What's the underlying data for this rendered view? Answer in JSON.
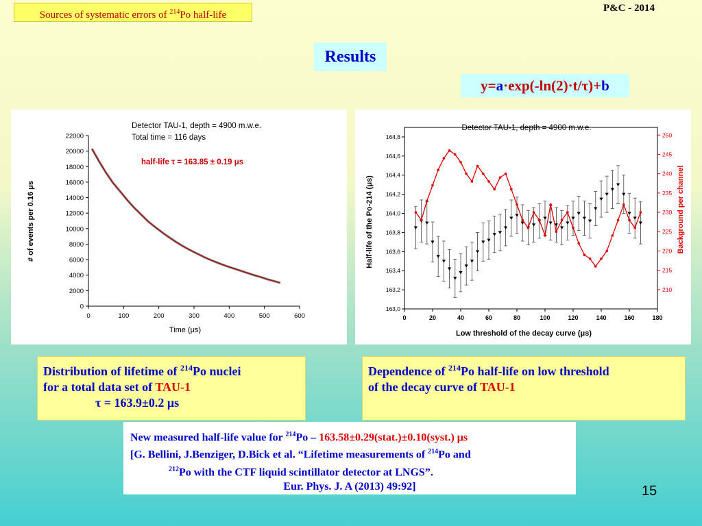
{
  "header": {
    "topic_prefix": "Sources of systematic errors of ",
    "topic_sup": "214",
    "topic_suffix": "Po half-life",
    "conference": "P&C - 2014"
  },
  "results_title": "Results",
  "formula": {
    "y_eq": "y=",
    "a": "a",
    "mid": "·exp(-ln(2)·t/",
    "tau": "τ",
    "plus": ")+",
    "b": "b"
  },
  "chart_data": [
    {
      "type": "line",
      "title": "Detector TAU-1, depth = 4900 m.w.e.",
      "subtitle": "Total time = 116 days",
      "annotation": "half-life τ = 163.85 ± 0.19 μs",
      "xlabel": "Time (μs)",
      "ylabel": "# of events per 0.16 μs",
      "xlim": [
        0,
        600
      ],
      "ylim": [
        0,
        22000
      ],
      "xticks": [
        "0",
        "100",
        "200",
        "300",
        "400",
        "500",
        "600"
      ],
      "yticks": [
        "0",
        "2000",
        "4000",
        "6000",
        "8000",
        "10000",
        "12000",
        "14000",
        "16000",
        "18000",
        "20000",
        "22000"
      ],
      "series": [
        {
          "x": [
            10,
            30,
            50,
            70,
            90,
            110,
            130,
            150,
            170,
            190,
            210,
            230,
            250,
            270,
            290,
            310,
            330,
            350,
            370,
            390,
            410,
            430,
            450,
            470,
            490,
            510,
            530,
            545
          ],
          "y": [
            20300,
            18700,
            17200,
            15900,
            14800,
            13700,
            12700,
            11800,
            10900,
            10200,
            9500,
            8850,
            8250,
            7700,
            7200,
            6750,
            6300,
            5900,
            5550,
            5200,
            4900,
            4600,
            4300,
            4000,
            3750,
            3450,
            3200,
            3000
          ]
        }
      ]
    },
    {
      "type": "scatter",
      "title": "Detector TAU-1, depth = 4900 m.w.e.",
      "xlabel": "Low threshold of the decay curve (μs)",
      "ylabel": "Half-life of the Po-214 (μs)",
      "y2label": "Background per channel",
      "xlim": [
        0,
        180
      ],
      "ylim": [
        163.0,
        164.9
      ],
      "y2lim": [
        205,
        252
      ],
      "xticks": [
        "0",
        "20",
        "40",
        "60",
        "80",
        "100",
        "120",
        "140",
        "160",
        "180"
      ],
      "yticks": [
        "163,0",
        "163,2",
        "163,4",
        "163,6",
        "163,8",
        "164,0",
        "164,2",
        "164,4",
        "164,6",
        "164,8"
      ],
      "y2ticks": [
        "210",
        "215",
        "220",
        "225",
        "230",
        "235",
        "240",
        "245",
        "250"
      ],
      "series": [
        {
          "axis": "left",
          "color": "#000000",
          "x": [
            8,
            12,
            16,
            20,
            24,
            28,
            32,
            36,
            40,
            44,
            48,
            52,
            56,
            60,
            64,
            68,
            72,
            76,
            80,
            84,
            88,
            92,
            96,
            100,
            104,
            108,
            112,
            116,
            120,
            124,
            128,
            132,
            136,
            140,
            144,
            148,
            152,
            156,
            160,
            164,
            168
          ],
          "y": [
            163.85,
            163.92,
            163.9,
            163.7,
            163.55,
            163.5,
            163.42,
            163.32,
            163.38,
            163.45,
            163.5,
            163.6,
            163.7,
            163.72,
            163.78,
            163.8,
            163.85,
            163.95,
            163.98,
            163.9,
            163.85,
            163.88,
            163.92,
            163.95,
            163.9,
            163.88,
            163.85,
            163.9,
            163.95,
            164.0,
            163.95,
            163.92,
            164.05,
            164.15,
            164.2,
            164.25,
            164.3,
            164.2,
            164.0,
            163.95,
            163.9
          ],
          "err": [
            0.22,
            0.22,
            0.22,
            0.21,
            0.21,
            0.21,
            0.2,
            0.2,
            0.2,
            0.2,
            0.2,
            0.2,
            0.2,
            0.2,
            0.19,
            0.19,
            0.19,
            0.19,
            0.19,
            0.19,
            0.18,
            0.18,
            0.18,
            0.18,
            0.18,
            0.18,
            0.18,
            0.18,
            0.18,
            0.18,
            0.18,
            0.18,
            0.18,
            0.19,
            0.19,
            0.2,
            0.2,
            0.2,
            0.21,
            0.21,
            0.22
          ]
        },
        {
          "axis": "right",
          "color": "#e00000",
          "x": [
            8,
            12,
            16,
            20,
            24,
            28,
            32,
            36,
            40,
            44,
            48,
            52,
            56,
            60,
            64,
            68,
            72,
            76,
            80,
            84,
            88,
            92,
            96,
            100,
            104,
            108,
            112,
            116,
            120,
            124,
            128,
            132,
            136,
            140,
            144,
            148,
            152,
            156,
            160,
            164,
            168
          ],
          "y": [
            230,
            228,
            233,
            237,
            241,
            244,
            246,
            245,
            243,
            240,
            238,
            242,
            240,
            238,
            236,
            239,
            240,
            236,
            232,
            228,
            226,
            230,
            228,
            224,
            232,
            225,
            228,
            230,
            226,
            222,
            219,
            218,
            216,
            218,
            220,
            224,
            228,
            232,
            228,
            226,
            230
          ]
        }
      ]
    }
  ],
  "caption_left": {
    "line1_prefix": "Distribution of lifetime of ",
    "sup": "214",
    "line1_suffix": "Po nuclei",
    "line2_prefix": "for a total data set of ",
    "detector": "TAU-1",
    "line3": "τ  = 163.9±0.2 μs"
  },
  "caption_right": {
    "line1_prefix": "Dependence of ",
    "sup": "214",
    "line1_suffix": "Po half-life on low threshold",
    "line2_prefix": "of the decay curve of ",
    "detector": "TAU-1"
  },
  "reference": {
    "l1_prefix": "New measured half-life value for ",
    "l1_sup": "214",
    "l1_mid": "Po – ",
    "l1_value": "163.58±0.29",
    "l1_suffix": "(stat.)±0.10(syst.) μs",
    "l2_prefix": "[G. Bellini, J.Benziger, D.Bick  et al. “Lifetime measurements of  ",
    "l2_sup": "214",
    "l2_suffix": "Po and",
    "l3_sup": "212",
    "l3_suffix": "Po with the CTF liquid scintillator detector at LNGS”.",
    "l4": "Eur. Phys. J. A (2013) 49:92]"
  },
  "page_number": "15"
}
